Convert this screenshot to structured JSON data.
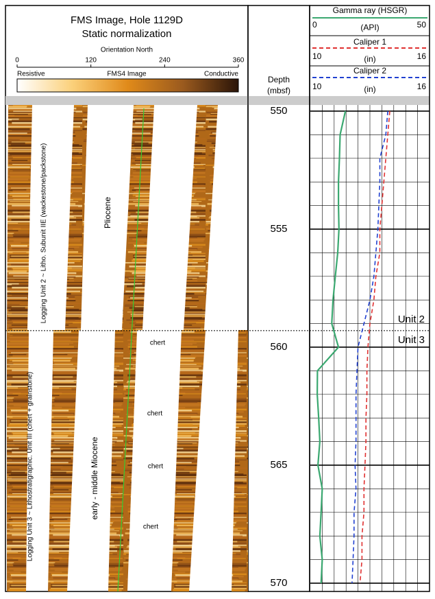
{
  "header": {
    "title": "FMS Image, Hole 1129D",
    "subtitle": "Static normalization",
    "orientation": {
      "title": "Orientation North",
      "xlim": [
        0,
        360
      ],
      "xticks": [
        0,
        120,
        240,
        360
      ]
    },
    "colorbar": {
      "left": "Resistive",
      "center": "FMS4 Image",
      "right": "Conductive"
    }
  },
  "fms_panel": {
    "labels": [
      "Logging Unit 2 ~ Litho. Subunit IIE (wackestone/packstone)",
      "Pliocene",
      "Logging Unit 3 ~ Lithostratigraphic. Unit III (chert + grainstone)",
      "early - middle Miocene",
      "chert",
      "chert",
      "chert",
      "chert"
    ]
  },
  "chart_data": {
    "type": "line",
    "ylabel": "Depth",
    "yunit": "(mbsf)",
    "ylim": [
      549.74,
      570.35
    ],
    "yticks": [
      550,
      555,
      560,
      565,
      570
    ],
    "grid": true,
    "depth": [
      550,
      551,
      552,
      553,
      554,
      555,
      556,
      557,
      558,
      559,
      560,
      561,
      562,
      563,
      564,
      565,
      566,
      567,
      568,
      569,
      570
    ],
    "boundary": {
      "depth": 559.3,
      "above": "Unit 2",
      "below": "Unit 3"
    },
    "series": [
      {
        "name": "Gamma ray (HSGR)",
        "unit": "(API)",
        "color": "#3aa870",
        "dash": "none",
        "xlim": [
          0,
          50
        ],
        "xticks": [
          0,
          50
        ],
        "values": [
          14.7,
          12.5,
          12.2,
          11.8,
          11.8,
          12,
          11.5,
          10.5,
          9.5,
          9,
          11.8,
          3,
          2.9,
          3.5,
          4,
          3.2,
          5,
          4.5,
          4,
          5,
          4.5
        ]
      },
      {
        "name": "Caliper 1",
        "unit": "(in)",
        "color": "#e03030",
        "dash": "6,4",
        "xlim": [
          10,
          16
        ],
        "xticks": [
          10,
          16
        ],
        "values": [
          14.0,
          13.9,
          13.8,
          13.7,
          13.6,
          13.5,
          13.5,
          13.3,
          13.2,
          13.0,
          12.9,
          12.85,
          12.85,
          12.8,
          12.8,
          12.75,
          12.7,
          12.7,
          12.6,
          12.6,
          12.5
        ]
      },
      {
        "name": "Caliper 2",
        "unit": "(in)",
        "color": "#2040d0",
        "dash": "6,4",
        "xlim": [
          10,
          16
        ],
        "xticks": [
          10,
          16
        ],
        "values": [
          13.9,
          13.8,
          13.5,
          13.5,
          13.45,
          13.4,
          13.3,
          13.2,
          13.0,
          12.7,
          12.4,
          12.35,
          12.3,
          12.3,
          12.3,
          12.25,
          12.3,
          12.2,
          12.2,
          12.15,
          12.1
        ]
      }
    ]
  }
}
